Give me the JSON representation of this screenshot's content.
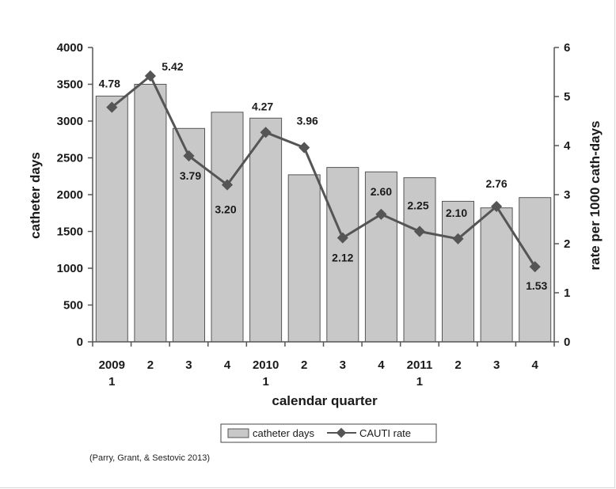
{
  "chart_data": {
    "type": "bar+line",
    "categories": [
      [
        "2009",
        "1"
      ],
      [
        "2"
      ],
      [
        "3"
      ],
      [
        "4"
      ],
      [
        "2010",
        "1"
      ],
      [
        "2"
      ],
      [
        "3"
      ],
      [
        "4"
      ],
      [
        "2011",
        "1"
      ],
      [
        "2"
      ],
      [
        "3"
      ],
      [
        "4"
      ]
    ],
    "series": [
      {
        "name": "catheter days",
        "type": "bar",
        "axis": "left",
        "values": [
          3340,
          3500,
          2900,
          3120,
          3040,
          2270,
          2370,
          2310,
          2230,
          1910,
          1820,
          1960
        ]
      },
      {
        "name": "CAUTI rate",
        "type": "line",
        "axis": "right",
        "values": [
          4.78,
          5.42,
          3.79,
          3.2,
          4.27,
          3.96,
          2.12,
          2.6,
          2.25,
          2.1,
          2.76,
          1.53
        ],
        "data_labels": [
          "4.78",
          "5.42",
          "3.79",
          "3.20",
          "4.27",
          "3.96",
          "2.12",
          "2.60",
          "2.25",
          "2.10",
          "2.76",
          "1.53"
        ]
      }
    ],
    "xlabel": "calendar quarter",
    "ylabel": "catheter days",
    "y2label": "rate per 1000 cath-days",
    "ylim": [
      0,
      4000
    ],
    "yticks": [
      "0",
      "500",
      "1000",
      "1500",
      "2000",
      "2500",
      "3000",
      "3500",
      "4000"
    ],
    "y2lim": [
      0,
      6
    ],
    "y2ticks": [
      "0",
      "1",
      "2",
      "3",
      "4",
      "5",
      "6"
    ],
    "grid": false,
    "legend_position": "bottom-center",
    "colors": {
      "bar_fill": "#c8c8c8",
      "bar_stroke": "#555555",
      "line": "#555555",
      "marker": "#555555"
    }
  },
  "source_note": "(Parry, Grant, & Sestovic 2013)"
}
